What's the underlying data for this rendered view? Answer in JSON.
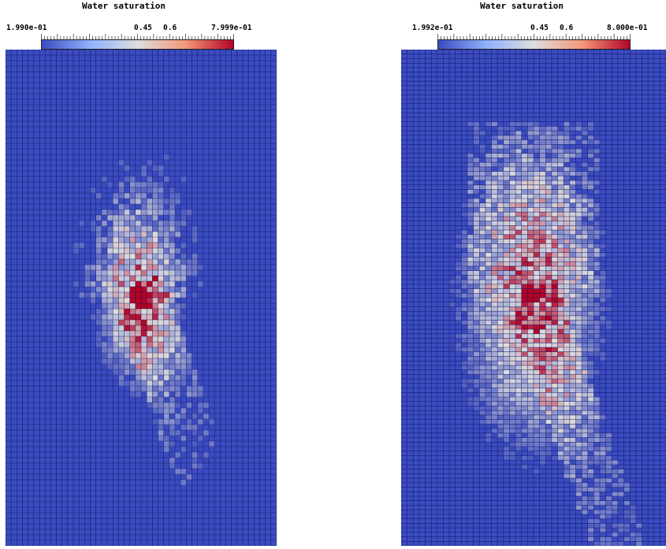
{
  "figures": [
    {
      "title": "Water saturation",
      "min_label": "1.990e-01",
      "mid1_label": "0.45",
      "mid2_label": "0.6",
      "max_label": "7.999e-01"
    },
    {
      "title": "Water saturation",
      "min_label": "1.992e-01",
      "mid1_label": "0.45",
      "mid2_label": "0.6",
      "max_label": "8.000e-01"
    }
  ],
  "colors": {
    "low": "#3b4cc0",
    "mid": "#dddddd",
    "high": "#b40426",
    "grid": "#0c0c5a"
  },
  "chart_data": [
    {
      "type": "heatmap",
      "title": "Water saturation",
      "colorbar_range": [
        0.199,
        0.7999
      ],
      "colorbar_ticks": [
        "1.990e-01",
        "0.45",
        "0.6",
        "7.999e-01"
      ],
      "colormap": "cool-to-warm"
    },
    {
      "type": "heatmap",
      "title": "Water saturation",
      "colorbar_range": [
        0.1992,
        0.8
      ],
      "colorbar_ticks": [
        "1.992e-01",
        "0.45",
        "0.6",
        "8.000e-01"
      ],
      "colormap": "cool-to-warm"
    }
  ]
}
